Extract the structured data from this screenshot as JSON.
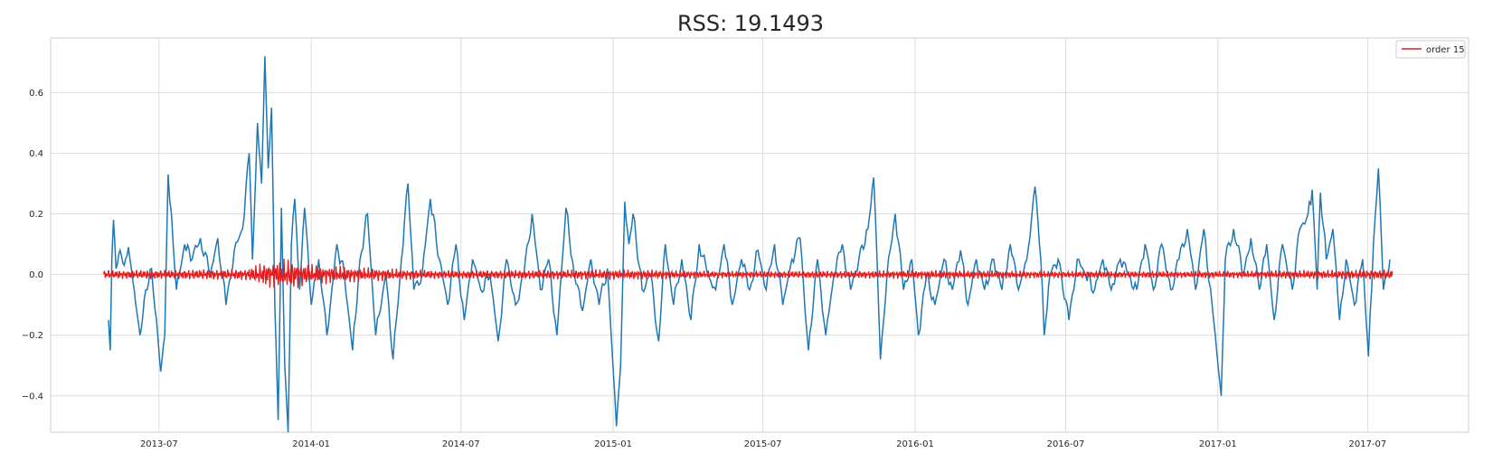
{
  "chart_data": {
    "type": "line",
    "title": "RSS: 19.1493",
    "xlabel": "",
    "ylabel": "",
    "x_start": "2013-05-01",
    "x_end": "2017-07-31",
    "xlim": [
      "2013-02-20",
      "2017-10-31"
    ],
    "ylim": [
      -0.52,
      0.78
    ],
    "grid": true,
    "legend": {
      "placement": "top-right",
      "entries": [
        "order 15"
      ]
    },
    "x_ticks": [
      "2013-07",
      "2014-01",
      "2014-07",
      "2015-01",
      "2015-07",
      "2016-01",
      "2016-07",
      "2017-01",
      "2017-07"
    ],
    "y_ticks": [
      "−0.4",
      "−0.2",
      "0.0",
      "0.2",
      "0.4",
      "0.6"
    ],
    "y_tick_values": [
      -0.4,
      -0.2,
      0.0,
      0.2,
      0.4,
      0.6
    ],
    "series": [
      {
        "color": "#1f77b4",
        "points": [
          [
            "2013-05-01",
            -0.15
          ],
          [
            "2013-05-03",
            -0.25
          ],
          [
            "2013-05-05",
            0.05
          ],
          [
            "2013-05-07",
            0.18
          ],
          [
            "2013-05-10",
            0.02
          ],
          [
            "2013-05-15",
            0.08
          ],
          [
            "2013-05-20",
            0.03
          ],
          [
            "2013-05-25",
            0.09
          ],
          [
            "2013-06-01",
            -0.05
          ],
          [
            "2013-06-08",
            -0.2
          ],
          [
            "2013-06-15",
            -0.05
          ],
          [
            "2013-06-22",
            0.02
          ],
          [
            "2013-06-28",
            -0.15
          ],
          [
            "2013-07-03",
            -0.32
          ],
          [
            "2013-07-08",
            -0.2
          ],
          [
            "2013-07-12",
            0.33
          ],
          [
            "2013-07-16",
            0.2
          ],
          [
            "2013-07-22",
            -0.05
          ],
          [
            "2013-08-01",
            0.1
          ],
          [
            "2013-08-10",
            0.05
          ],
          [
            "2013-08-20",
            0.12
          ],
          [
            "2013-09-01",
            0.0
          ],
          [
            "2013-09-10",
            0.12
          ],
          [
            "2013-09-20",
            -0.1
          ],
          [
            "2013-09-30",
            0.08
          ],
          [
            "2013-10-10",
            0.15
          ],
          [
            "2013-10-18",
            0.4
          ],
          [
            "2013-10-22",
            0.05
          ],
          [
            "2013-10-28",
            0.5
          ],
          [
            "2013-11-02",
            0.3
          ],
          [
            "2013-11-06",
            0.72
          ],
          [
            "2013-11-10",
            0.35
          ],
          [
            "2013-11-14",
            0.55
          ],
          [
            "2013-11-18",
            -0.1
          ],
          [
            "2013-11-22",
            -0.48
          ],
          [
            "2013-11-26",
            0.22
          ],
          [
            "2013-11-30",
            -0.3
          ],
          [
            "2013-12-04",
            -0.52
          ],
          [
            "2013-12-08",
            0.1
          ],
          [
            "2013-12-12",
            0.25
          ],
          [
            "2013-12-18",
            -0.05
          ],
          [
            "2013-12-24",
            0.22
          ],
          [
            "2014-01-01",
            -0.1
          ],
          [
            "2014-01-10",
            0.05
          ],
          [
            "2014-01-20",
            -0.2
          ],
          [
            "2014-02-01",
            0.1
          ],
          [
            "2014-02-10",
            0.0
          ],
          [
            "2014-02-20",
            -0.25
          ],
          [
            "2014-03-01",
            0.05
          ],
          [
            "2014-03-10",
            0.2
          ],
          [
            "2014-03-20",
            -0.2
          ],
          [
            "2014-04-01",
            0.0
          ],
          [
            "2014-04-10",
            -0.28
          ],
          [
            "2014-04-20",
            0.05
          ],
          [
            "2014-04-28",
            0.3
          ],
          [
            "2014-05-05",
            -0.05
          ],
          [
            "2014-05-15",
            0.0
          ],
          [
            "2014-05-25",
            0.25
          ],
          [
            "2014-06-05",
            0.05
          ],
          [
            "2014-06-15",
            -0.1
          ],
          [
            "2014-06-25",
            0.1
          ],
          [
            "2014-07-05",
            -0.15
          ],
          [
            "2014-07-15",
            0.05
          ],
          [
            "2014-07-25",
            -0.05
          ],
          [
            "2014-08-05",
            0.0
          ],
          [
            "2014-08-15",
            -0.22
          ],
          [
            "2014-08-25",
            0.05
          ],
          [
            "2014-09-05",
            -0.1
          ],
          [
            "2014-09-15",
            0.0
          ],
          [
            "2014-09-25",
            0.2
          ],
          [
            "2014-10-05",
            -0.05
          ],
          [
            "2014-10-15",
            0.05
          ],
          [
            "2014-10-25",
            -0.2
          ],
          [
            "2014-11-05",
            0.22
          ],
          [
            "2014-11-15",
            0.0
          ],
          [
            "2014-11-25",
            -0.12
          ],
          [
            "2014-12-05",
            0.05
          ],
          [
            "2014-12-15",
            -0.1
          ],
          [
            "2014-12-25",
            0.02
          ],
          [
            "2015-01-05",
            -0.5
          ],
          [
            "2015-01-10",
            -0.3
          ],
          [
            "2015-01-15",
            0.24
          ],
          [
            "2015-01-20",
            0.1
          ],
          [
            "2015-01-25",
            0.2
          ],
          [
            "2015-02-05",
            -0.05
          ],
          [
            "2015-02-15",
            0.0
          ],
          [
            "2015-02-25",
            -0.22
          ],
          [
            "2015-03-05",
            0.1
          ],
          [
            "2015-03-15",
            -0.1
          ],
          [
            "2015-03-25",
            0.05
          ],
          [
            "2015-04-05",
            -0.15
          ],
          [
            "2015-04-15",
            0.1
          ],
          [
            "2015-04-25",
            0.0
          ],
          [
            "2015-05-05",
            -0.05
          ],
          [
            "2015-05-15",
            0.1
          ],
          [
            "2015-05-25",
            -0.1
          ],
          [
            "2015-06-05",
            0.05
          ],
          [
            "2015-06-15",
            -0.05
          ],
          [
            "2015-06-25",
            0.08
          ],
          [
            "2015-07-05",
            -0.05
          ],
          [
            "2015-07-15",
            0.1
          ],
          [
            "2015-07-25",
            -0.1
          ],
          [
            "2015-08-05",
            0.05
          ],
          [
            "2015-08-15",
            0.12
          ],
          [
            "2015-08-25",
            -0.25
          ],
          [
            "2015-09-05",
            0.05
          ],
          [
            "2015-09-15",
            -0.2
          ],
          [
            "2015-09-25",
            0.0
          ],
          [
            "2015-10-05",
            0.1
          ],
          [
            "2015-10-15",
            -0.05
          ],
          [
            "2015-10-25",
            0.05
          ],
          [
            "2015-11-05",
            0.15
          ],
          [
            "2015-11-12",
            0.32
          ],
          [
            "2015-11-16",
            0.05
          ],
          [
            "2015-11-20",
            -0.28
          ],
          [
            "2015-11-28",
            0.0
          ],
          [
            "2015-12-08",
            0.2
          ],
          [
            "2015-12-18",
            -0.05
          ],
          [
            "2015-12-28",
            0.05
          ],
          [
            "2016-01-05",
            -0.2
          ],
          [
            "2016-01-15",
            0.0
          ],
          [
            "2016-01-25",
            -0.1
          ],
          [
            "2016-02-05",
            0.05
          ],
          [
            "2016-02-15",
            -0.05
          ],
          [
            "2016-02-25",
            0.08
          ],
          [
            "2016-03-05",
            -0.1
          ],
          [
            "2016-03-15",
            0.05
          ],
          [
            "2016-03-25",
            -0.05
          ],
          [
            "2016-04-05",
            0.05
          ],
          [
            "2016-04-15",
            -0.05
          ],
          [
            "2016-04-25",
            0.1
          ],
          [
            "2016-05-05",
            -0.05
          ],
          [
            "2016-05-15",
            0.05
          ],
          [
            "2016-05-25",
            0.29
          ],
          [
            "2016-06-01",
            0.05
          ],
          [
            "2016-06-05",
            -0.2
          ],
          [
            "2016-06-12",
            0.0
          ],
          [
            "2016-06-22",
            0.05
          ],
          [
            "2016-07-05",
            -0.15
          ],
          [
            "2016-07-15",
            0.05
          ],
          [
            "2016-07-25",
            0.0
          ],
          [
            "2016-08-05",
            -0.05
          ],
          [
            "2016-08-15",
            0.05
          ],
          [
            "2016-08-25",
            -0.05
          ],
          [
            "2016-09-05",
            0.05
          ],
          [
            "2016-09-15",
            0.0
          ],
          [
            "2016-09-25",
            -0.05
          ],
          [
            "2016-10-05",
            0.1
          ],
          [
            "2016-10-15",
            -0.05
          ],
          [
            "2016-10-25",
            0.1
          ],
          [
            "2016-11-05",
            -0.05
          ],
          [
            "2016-11-15",
            0.05
          ],
          [
            "2016-11-25",
            0.15
          ],
          [
            "2016-12-05",
            -0.05
          ],
          [
            "2016-12-15",
            0.15
          ],
          [
            "2016-12-25",
            -0.1
          ],
          [
            "2017-01-05",
            -0.4
          ],
          [
            "2017-01-10",
            0.05
          ],
          [
            "2017-01-20",
            0.15
          ],
          [
            "2017-02-01",
            0.0
          ],
          [
            "2017-02-10",
            0.12
          ],
          [
            "2017-02-20",
            -0.05
          ],
          [
            "2017-03-01",
            0.1
          ],
          [
            "2017-03-10",
            -0.15
          ],
          [
            "2017-03-20",
            0.1
          ],
          [
            "2017-04-01",
            -0.05
          ],
          [
            "2017-04-10",
            0.15
          ],
          [
            "2017-04-20",
            0.2
          ],
          [
            "2017-04-25",
            0.28
          ],
          [
            "2017-05-01",
            -0.05
          ],
          [
            "2017-05-05",
            0.27
          ],
          [
            "2017-05-12",
            0.05
          ],
          [
            "2017-05-20",
            0.15
          ],
          [
            "2017-05-28",
            -0.15
          ],
          [
            "2017-06-05",
            0.05
          ],
          [
            "2017-06-15",
            -0.1
          ],
          [
            "2017-06-25",
            0.05
          ],
          [
            "2017-07-02",
            -0.27
          ],
          [
            "2017-07-08",
            0.1
          ],
          [
            "2017-07-14",
            0.35
          ],
          [
            "2017-07-20",
            -0.05
          ],
          [
            "2017-07-28",
            0.05
          ]
        ]
      },
      {
        "name": "order 15",
        "color": "#e41a1c",
        "start": "2013-04-25",
        "end": "2017-07-31",
        "amplitude_profile": [
          [
            "2013-04-25",
            0.015
          ],
          [
            "2013-10-15",
            0.02
          ],
          [
            "2013-11-01",
            0.04
          ],
          [
            "2013-12-01",
            0.055
          ],
          [
            "2014-01-01",
            0.035
          ],
          [
            "2014-03-01",
            0.025
          ],
          [
            "2014-06-01",
            0.015
          ],
          [
            "2015-01-01",
            0.018
          ],
          [
            "2015-06-01",
            0.012
          ],
          [
            "2016-01-01",
            0.015
          ],
          [
            "2016-07-01",
            0.012
          ],
          [
            "2017-01-01",
            0.012
          ],
          [
            "2017-07-31",
            0.018
          ]
        ]
      }
    ]
  }
}
